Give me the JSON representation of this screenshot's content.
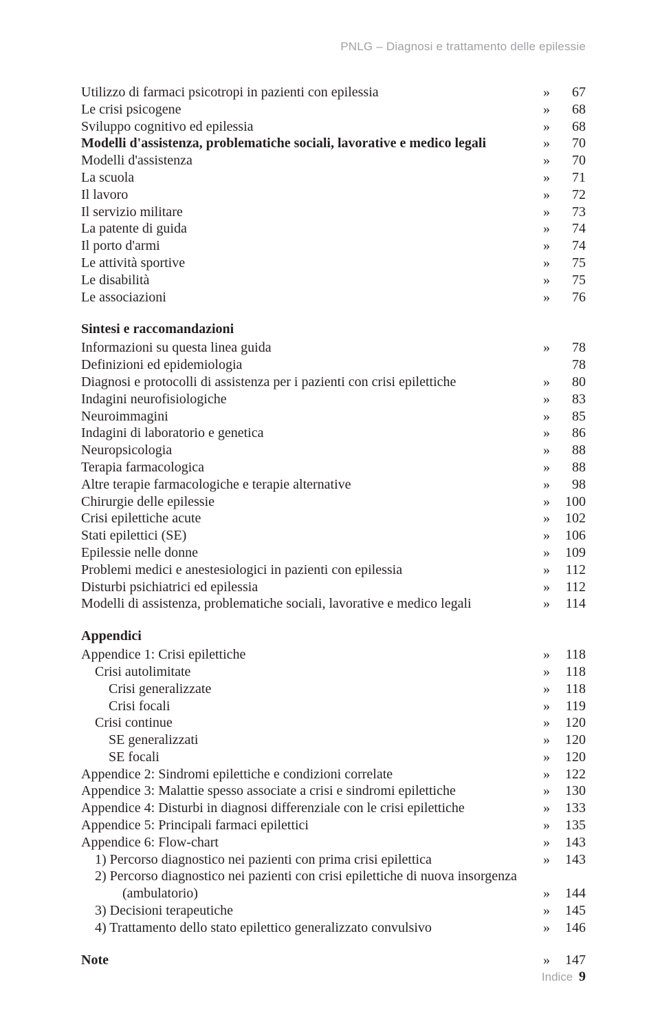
{
  "running_header": "PNLG – Diagnosi e trattamento delle epilessie",
  "marker": "»",
  "footer_label": "Indice",
  "footer_page": "9",
  "sections": [
    {
      "title": null,
      "items": [
        {
          "label": "Utilizzo di farmaci psicotropi in pazienti con epilessia",
          "page": "67",
          "indent": 0
        },
        {
          "label": "Le crisi psicogene",
          "page": "68",
          "indent": 0
        },
        {
          "label": "Sviluppo cognitivo ed epilessia",
          "page": "68",
          "indent": 0
        },
        {
          "label": "Modelli d'assistenza, problematiche sociali, lavorative e medico legali",
          "page": "70",
          "indent": 0,
          "bold": true
        },
        {
          "label": "Modelli d'assistenza",
          "page": "70",
          "indent": 0
        },
        {
          "label": "La scuola",
          "page": "71",
          "indent": 0
        },
        {
          "label": "Il lavoro",
          "page": "72",
          "indent": 0
        },
        {
          "label": "Il servizio militare",
          "page": "73",
          "indent": 0
        },
        {
          "label": "La patente di guida",
          "page": "74",
          "indent": 0
        },
        {
          "label": "Il porto d'armi",
          "page": "74",
          "indent": 0
        },
        {
          "label": "Le attività sportive",
          "page": "75",
          "indent": 0
        },
        {
          "label": "Le disabilità",
          "page": "75",
          "indent": 0
        },
        {
          "label": "Le associazioni",
          "page": "76",
          "indent": 0
        }
      ]
    },
    {
      "title": "Sintesi e raccomandazioni",
      "items": [
        {
          "label": "Informazioni su questa linea guida",
          "page": "78",
          "indent": 0
        },
        {
          "label": "Definizioni ed epidemiologia",
          "page": "78",
          "indent": 0,
          "no_marker": true
        },
        {
          "label": "Diagnosi e protocolli di assistenza per i pazienti con crisi epilettiche",
          "page": "80",
          "indent": 0
        },
        {
          "label": "Indagini neurofisiologiche",
          "page": "83",
          "indent": 0
        },
        {
          "label": "Neuroimmagini",
          "page": "85",
          "indent": 0
        },
        {
          "label": "Indagini di laboratorio e genetica",
          "page": "86",
          "indent": 0
        },
        {
          "label": "Neuropsicologia",
          "page": "88",
          "indent": 0
        },
        {
          "label": "Terapia farmacologica",
          "page": "88",
          "indent": 0
        },
        {
          "label": "Altre terapie farmacologiche e terapie alternative",
          "page": "98",
          "indent": 0
        },
        {
          "label": "Chirurgie delle epilessie",
          "page": "100",
          "indent": 0
        },
        {
          "label": "Crisi epilettiche acute",
          "page": "102",
          "indent": 0
        },
        {
          "label": "Stati epilettici (SE)",
          "page": "106",
          "indent": 0
        },
        {
          "label": "Epilessie nelle donne",
          "page": "109",
          "indent": 0
        },
        {
          "label": "Problemi medici e anestesiologici in pazienti con epilessia",
          "page": "112",
          "indent": 0
        },
        {
          "label": "Disturbi psichiatrici ed epilessia",
          "page": "112",
          "indent": 0
        },
        {
          "label": "Modelli di assistenza, problematiche sociali, lavorative e medico legali",
          "page": "114",
          "indent": 0
        }
      ]
    },
    {
      "title": "Appendici",
      "items": [
        {
          "label": "Appendice 1: Crisi epilettiche",
          "page": "118",
          "indent": 0
        },
        {
          "label": "Crisi autolimitate",
          "page": "118",
          "indent": 1
        },
        {
          "label": "Crisi generalizzate",
          "page": "118",
          "indent": 2
        },
        {
          "label": "Crisi focali",
          "page": "119",
          "indent": 2
        },
        {
          "label": "Crisi continue",
          "page": "120",
          "indent": 1
        },
        {
          "label": "SE generalizzati",
          "page": "120",
          "indent": 2
        },
        {
          "label": "SE focali",
          "page": "120",
          "indent": 2
        },
        {
          "label": "Appendice 2: Sindromi epilettiche e condizioni correlate",
          "page": "122",
          "indent": 0
        },
        {
          "label": "Appendice 3: Malattie spesso associate a crisi e sindromi epilettiche",
          "page": "130",
          "indent": 0
        },
        {
          "label": "Appendice 4: Disturbi in diagnosi differenziale con le crisi epilettiche",
          "page": "133",
          "indent": 0
        },
        {
          "label": "Appendice 5: Principali farmaci epilettici",
          "page": "135",
          "indent": 0
        },
        {
          "label": "Appendice 6: Flow-chart",
          "page": "143",
          "indent": 0
        },
        {
          "label": "1) Percorso diagnostico nei pazienti con prima crisi epilettica",
          "page": "143",
          "indent": 1
        },
        {
          "label": "2) Percorso diagnostico nei pazienti con crisi epilettiche di nuova insorgenza",
          "page": null,
          "indent": 1
        },
        {
          "label": "(ambulatorio)",
          "page": "144",
          "indent": 3
        },
        {
          "label": "3) Decisioni terapeutiche",
          "page": "145",
          "indent": 1
        },
        {
          "label": "4) Trattamento dello stato epilettico generalizzato convulsivo",
          "page": "146",
          "indent": 1
        }
      ]
    },
    {
      "title": null,
      "items": [
        {
          "label": "Note",
          "page": "147",
          "indent": 0,
          "bold": true
        }
      ]
    }
  ]
}
